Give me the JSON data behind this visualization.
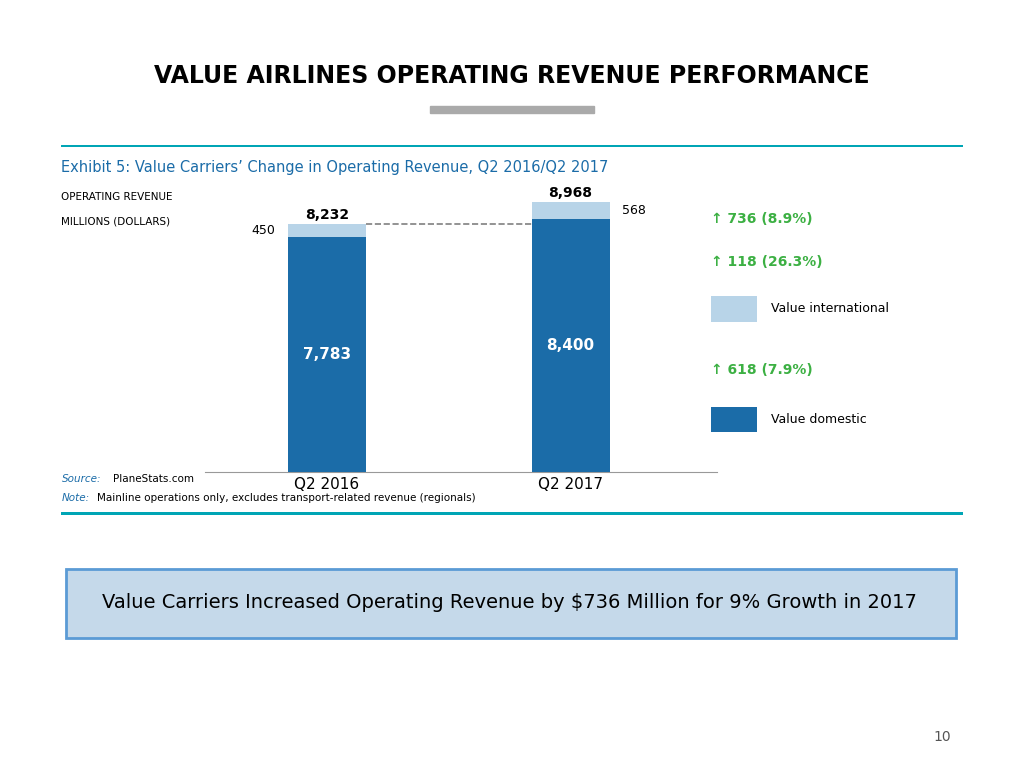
{
  "title": "VALUE AIRLINES OPERATING REVENUE PERFORMANCE",
  "exhibit_title": "Exhibit 5: Value Carriers’ Change in Operating Revenue, Q2 2016/Q2 2017",
  "ylabel_line1": "OPERATING REVENUE",
  "ylabel_line2": "MILLIONS (DOLLARS)",
  "categories": [
    "Q2 2016",
    "Q2 2017"
  ],
  "domestic_values": [
    7783,
    8400
  ],
  "international_values": [
    450,
    568
  ],
  "total_labels": [
    "8,232",
    "8,968"
  ],
  "domestic_labels": [
    "7,783",
    "8,400"
  ],
  "international_labels": [
    "450",
    "568"
  ],
  "color_domestic": "#1B6CA8",
  "color_international": "#B8D4E8",
  "annotation_total": "↑ 736 (8.9%)",
  "annotation_intl": "↑ 118 (26.3%)",
  "annotation_dom": "↑ 618 (7.9%)",
  "annotation_color": "#3CB043",
  "legend_intl": "Value international",
  "legend_dom": "Value domestic",
  "page_number": "10",
  "teal_line_color": "#00A5B5",
  "exhibit_title_color": "#1B6CA8",
  "source_color": "#1B6CA8",
  "summary_bg_color": "#C5D9EA",
  "summary_border_color": "#5B9BD5",
  "bar_width": 0.32
}
